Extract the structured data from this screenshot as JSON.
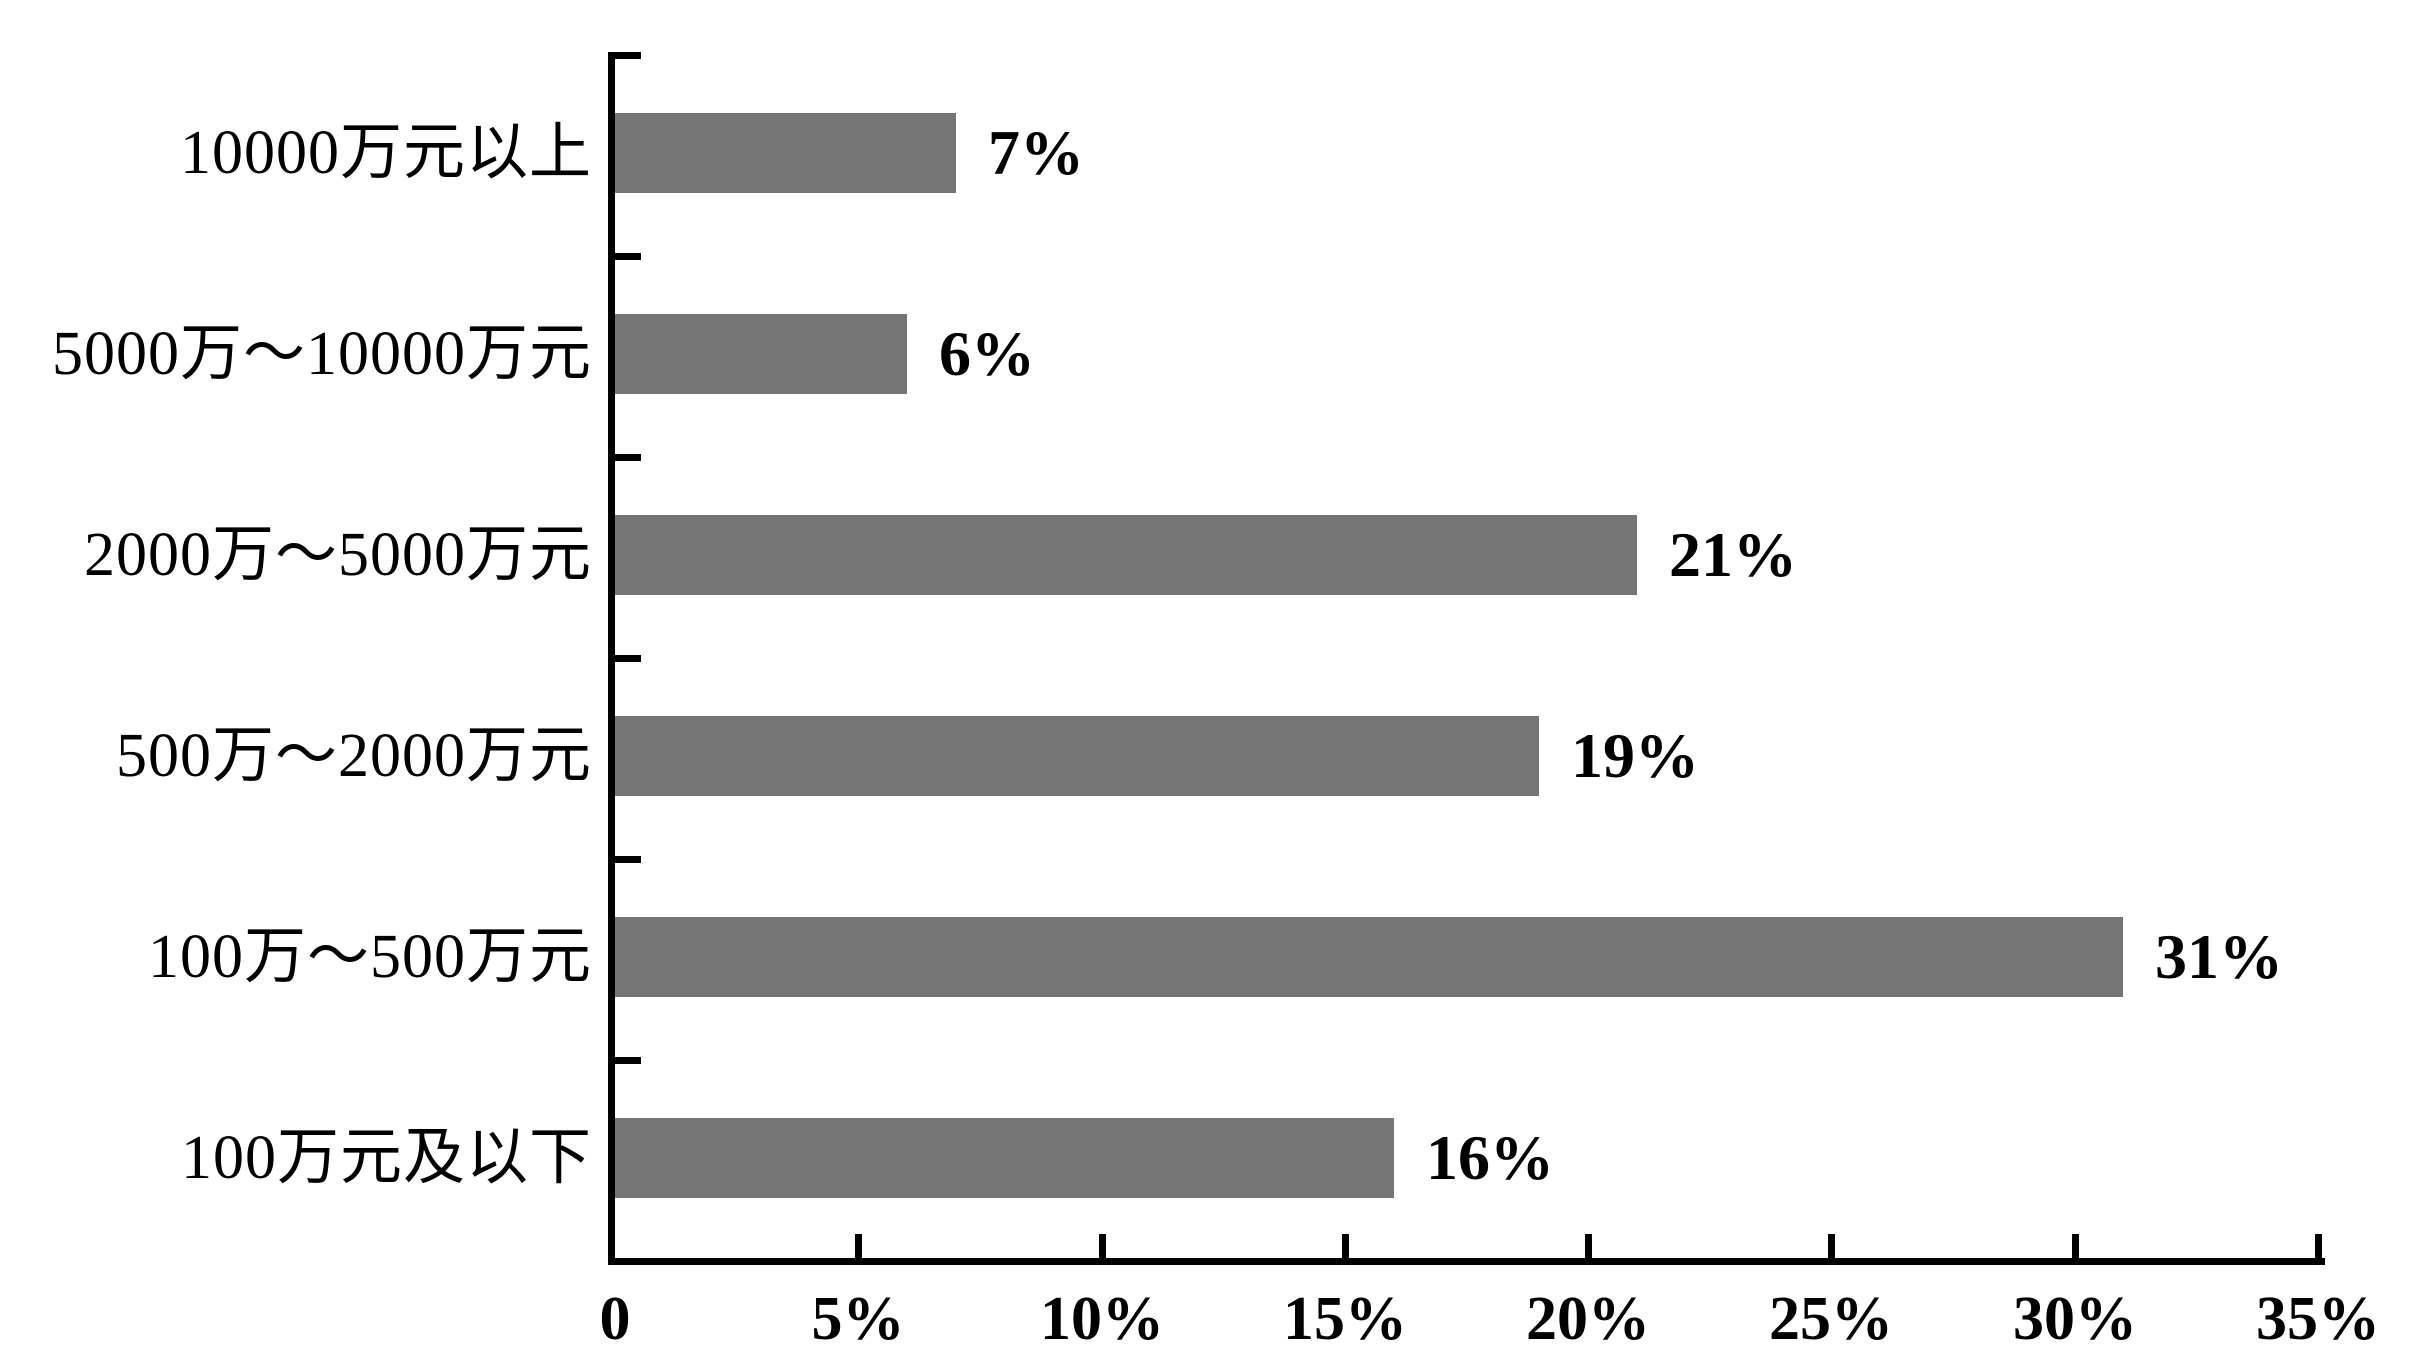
{
  "chart_data": {
    "type": "bar",
    "orientation": "horizontal",
    "title": "",
    "xlabel": "",
    "ylabel": "",
    "categories": [
      "10000万元以上",
      "5000万～10000万元",
      "2000万～5000万元",
      "500万～2000万元",
      "100万～500万元",
      "100万元及以下"
    ],
    "values": [
      7,
      6,
      21,
      19,
      31,
      16
    ],
    "value_labels": [
      "7%",
      "6%",
      "21%",
      "19%",
      "31%",
      "16%"
    ],
    "x_axis": {
      "min": 0,
      "max": 35,
      "tick_step": 5,
      "ticks": [
        "0",
        "5%",
        "10%",
        "15%",
        "20%",
        "25%",
        "30%",
        "35%"
      ]
    },
    "grid": false,
    "legend": null,
    "bar_color": "#757575",
    "axis_color": "#000000",
    "label_color": "#000000",
    "background_color": "#ffffff"
  }
}
